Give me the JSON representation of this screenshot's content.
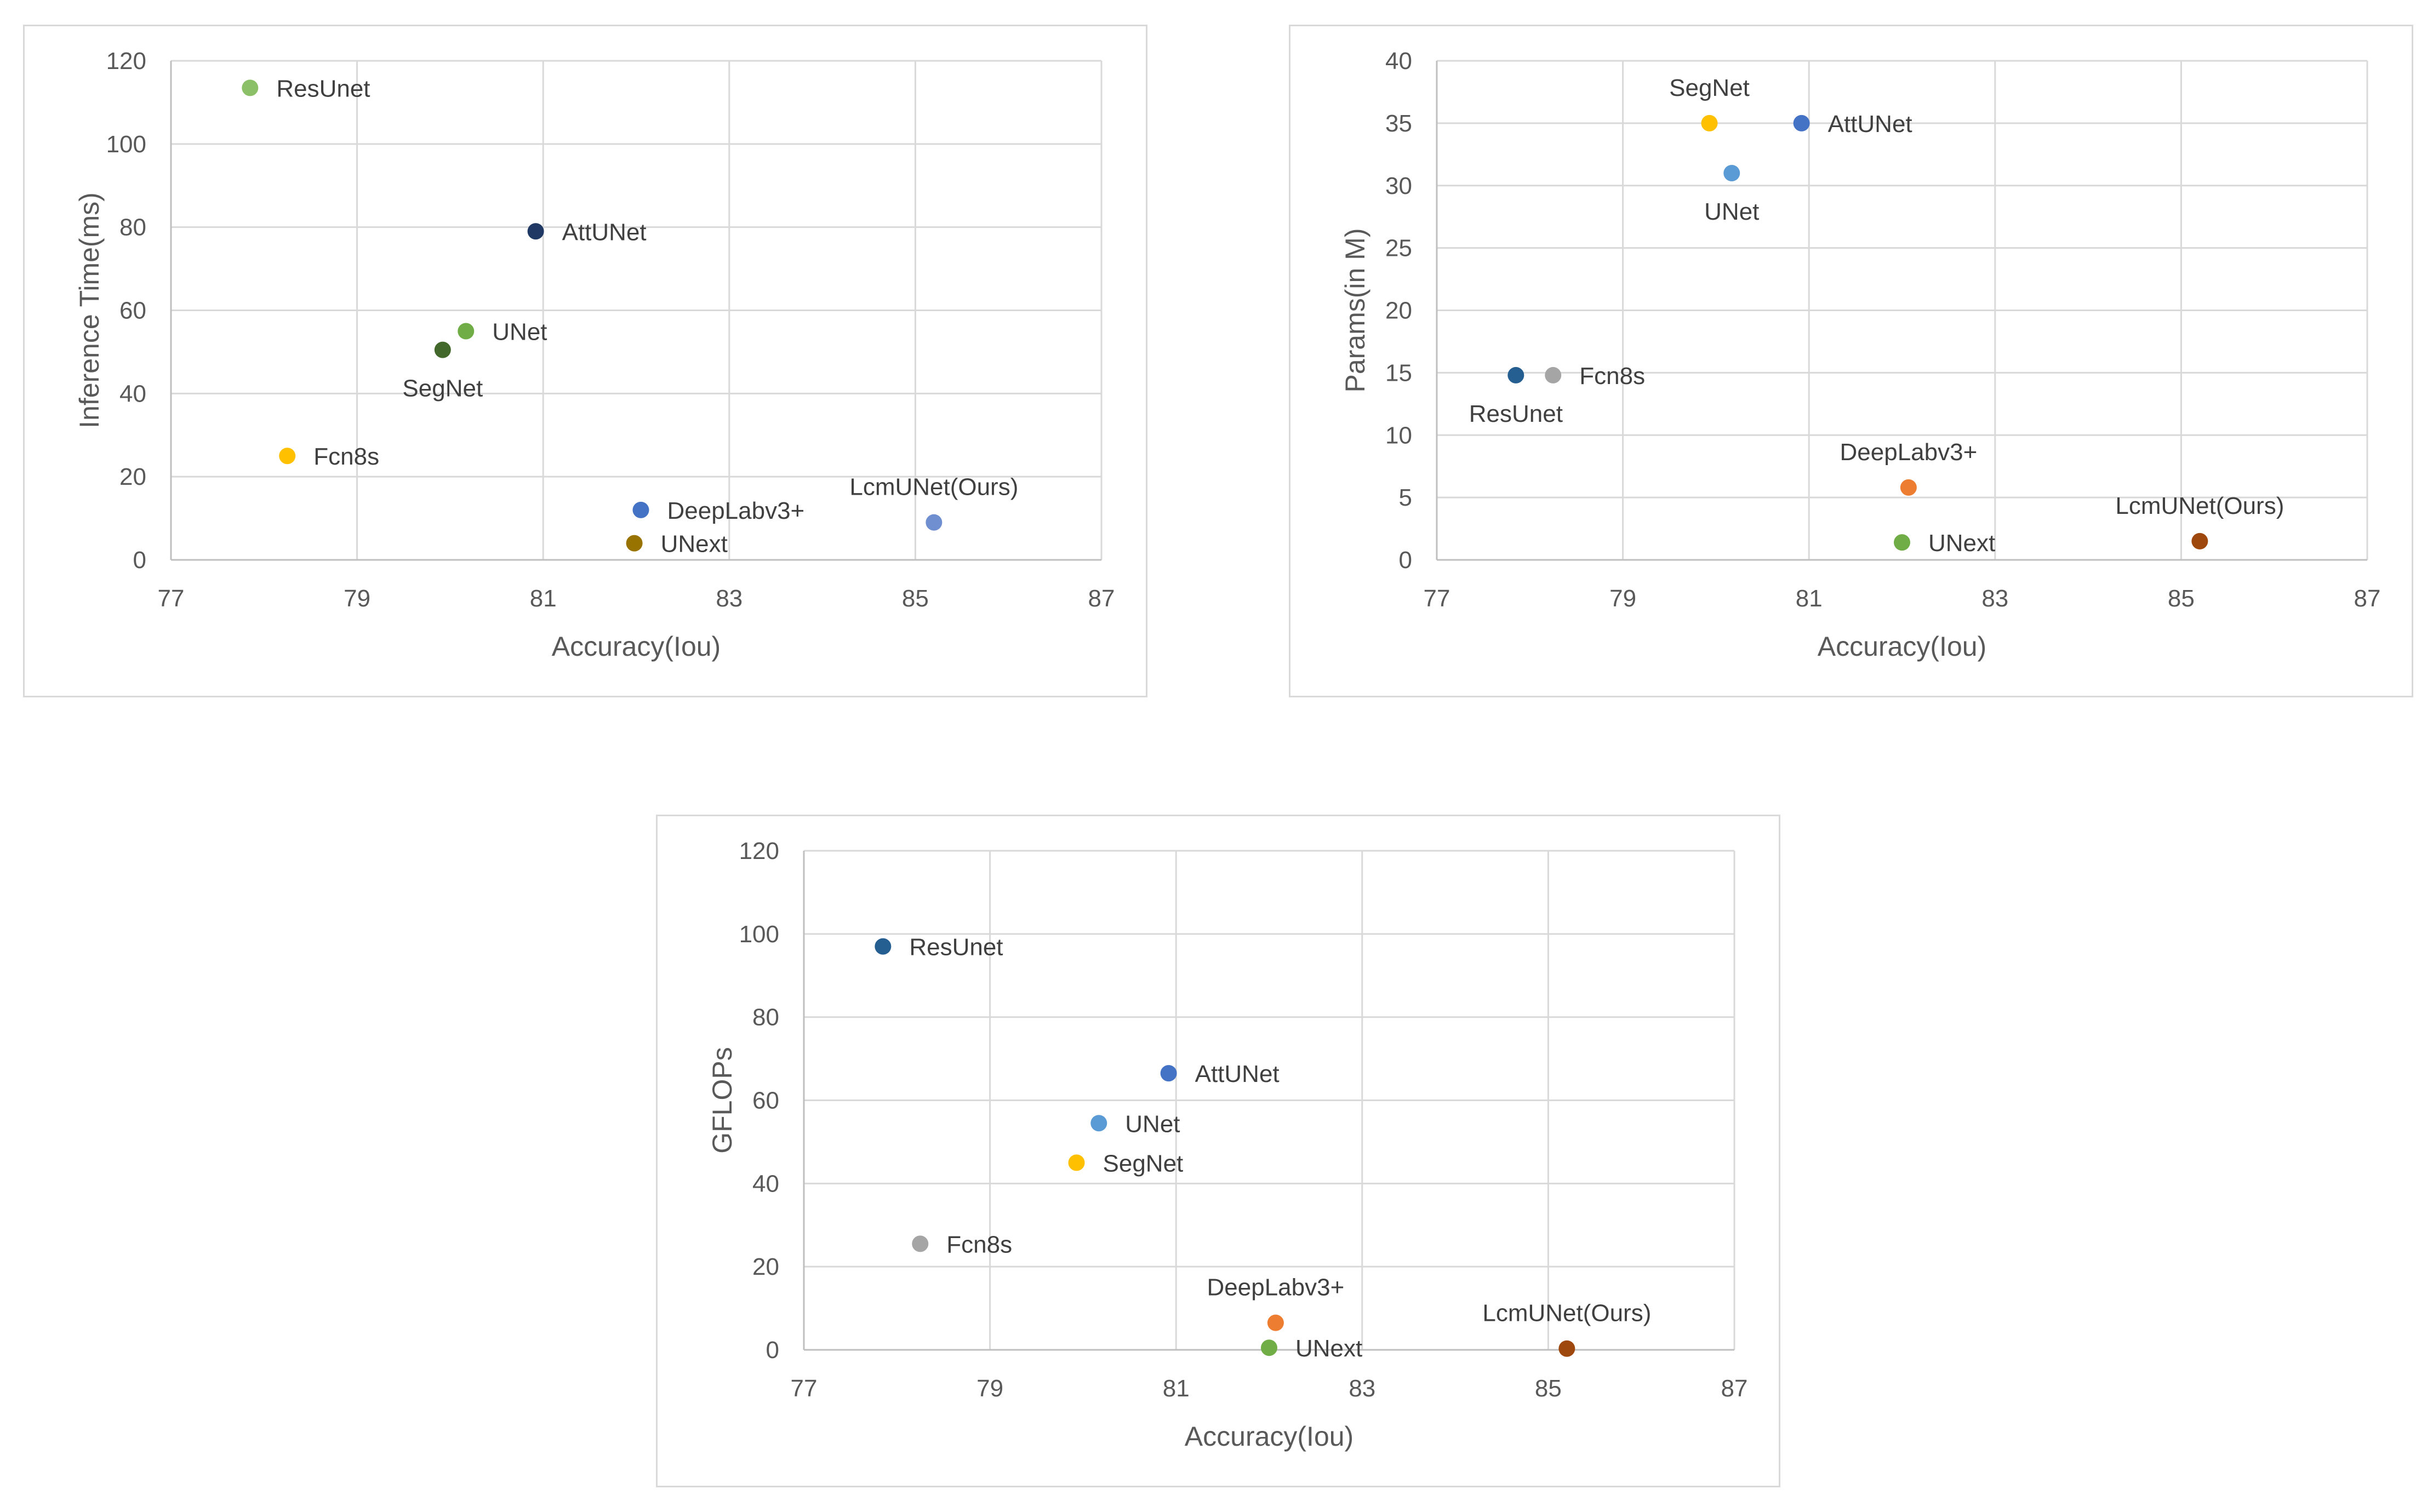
{
  "chart_data": [
    {
      "type": "scatter",
      "title": "",
      "xlabel": "Accuracy(Iou)",
      "ylabel": "Inference Time(ms)",
      "xlim": [
        77,
        87
      ],
      "ylim": [
        0,
        120
      ],
      "xticks": [
        "77",
        "79",
        "81",
        "83",
        "85",
        "87"
      ],
      "yticks": [
        "0",
        "20",
        "40",
        "60",
        "80",
        "100",
        "120"
      ],
      "points": [
        {
          "name": "ResUnet",
          "x": 77.85,
          "y": 113.5,
          "color": "#8cc068",
          "label_pos": "right"
        },
        {
          "name": "AttUNet",
          "x": 80.92,
          "y": 79,
          "color": "#203864",
          "label_pos": "right"
        },
        {
          "name": "UNet",
          "x": 80.17,
          "y": 55,
          "color": "#70ad47",
          "label_pos": "right"
        },
        {
          "name": "SegNet",
          "x": 79.92,
          "y": 50.5,
          "color": "#43682b",
          "label_pos": "below"
        },
        {
          "name": "Fcn8s",
          "x": 78.25,
          "y": 25,
          "color": "#ffc000",
          "label_pos": "right"
        },
        {
          "name": "DeepLabv3+",
          "x": 82.05,
          "y": 12,
          "color": "#4472c4",
          "label_pos": "right"
        },
        {
          "name": "UNext",
          "x": 81.98,
          "y": 4,
          "color": "#997300",
          "label_pos": "right"
        },
        {
          "name": "LcmUNet(Ours)",
          "x": 85.2,
          "y": 9,
          "color": "#6f8fd0",
          "label_pos": "above"
        }
      ]
    },
    {
      "type": "scatter",
      "title": "",
      "xlabel": "Accuracy(Iou)",
      "ylabel": "Params(in M)",
      "xlim": [
        77,
        87
      ],
      "ylim": [
        0,
        40
      ],
      "xticks": [
        "77",
        "79",
        "81",
        "83",
        "85",
        "87"
      ],
      "yticks": [
        "0",
        "5",
        "10",
        "15",
        "20",
        "25",
        "30",
        "35",
        "40"
      ],
      "points": [
        {
          "name": "SegNet",
          "x": 79.93,
          "y": 35,
          "color": "#ffc000",
          "label_pos": "above"
        },
        {
          "name": "AttUNet",
          "x": 80.92,
          "y": 35,
          "color": "#4472c4",
          "label_pos": "right"
        },
        {
          "name": "UNet",
          "x": 80.17,
          "y": 31,
          "color": "#5b9bd5",
          "label_pos": "below"
        },
        {
          "name": "ResUnet",
          "x": 77.85,
          "y": 14.8,
          "color": "#255e91",
          "label_pos": "below"
        },
        {
          "name": "Fcn8s",
          "x": 78.25,
          "y": 14.8,
          "color": "#a5a5a5",
          "label_pos": "right"
        },
        {
          "name": "DeepLabv3+",
          "x": 82.07,
          "y": 5.8,
          "color": "#ed7d31",
          "label_pos": "above"
        },
        {
          "name": "UNext",
          "x": 82.0,
          "y": 1.4,
          "color": "#70ad47",
          "label_pos": "right"
        },
        {
          "name": "LcmUNet(Ours)",
          "x": 85.2,
          "y": 1.5,
          "color": "#9e480e",
          "label_pos": "above"
        }
      ]
    },
    {
      "type": "scatter",
      "title": "",
      "xlabel": "Accuracy(Iou)",
      "ylabel": "GFLOPs",
      "xlim": [
        77,
        87
      ],
      "ylim": [
        0,
        120
      ],
      "xticks": [
        "77",
        "79",
        "81",
        "83",
        "85",
        "87"
      ],
      "yticks": [
        "0",
        "20",
        "40",
        "60",
        "80",
        "100",
        "120"
      ],
      "points": [
        {
          "name": "ResUnet",
          "x": 77.85,
          "y": 97,
          "color": "#255e91",
          "label_pos": "right"
        },
        {
          "name": "AttUNet",
          "x": 80.92,
          "y": 66.5,
          "color": "#4472c4",
          "label_pos": "right"
        },
        {
          "name": "UNet",
          "x": 80.17,
          "y": 54.5,
          "color": "#5b9bd5",
          "label_pos": "right"
        },
        {
          "name": "SegNet",
          "x": 79.93,
          "y": 45,
          "color": "#ffc000",
          "label_pos": "right"
        },
        {
          "name": "Fcn8s",
          "x": 78.25,
          "y": 25.5,
          "color": "#a5a5a5",
          "label_pos": "right"
        },
        {
          "name": "DeepLabv3+",
          "x": 82.07,
          "y": 6.5,
          "color": "#ed7d31",
          "label_pos": "above"
        },
        {
          "name": "UNext",
          "x": 82.0,
          "y": 0.5,
          "color": "#70ad47",
          "label_pos": "right"
        },
        {
          "name": "LcmUNet(Ours)",
          "x": 85.2,
          "y": 0.3,
          "color": "#9e480e",
          "label_pos": "above"
        }
      ]
    }
  ]
}
